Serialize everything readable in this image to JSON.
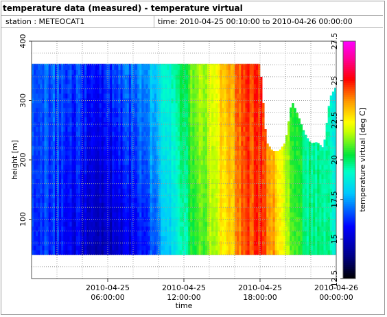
{
  "header": {
    "title": "temperature data (measured) - temperature virtual",
    "station": "station : METEOCAT1",
    "time_range": "time: 2010-04-25 00:10:00 to 2010-04-26 00:00:00"
  },
  "chart_data": {
    "type": "heatmap",
    "xlabel": "time",
    "ylabel": "height [m]",
    "x_range_hours": [
      0,
      24
    ],
    "x_ticks": [
      {
        "hour": 6,
        "line1": "2010-04-25",
        "line2": "06:00:00"
      },
      {
        "hour": 12,
        "line1": "2010-04-25",
        "line2": "12:00:00"
      },
      {
        "hour": 18,
        "line1": "2010-04-25",
        "line2": "18:00:00"
      },
      {
        "hour": 24,
        "line1": "2010-04-26",
        "line2": "00:00:00"
      }
    ],
    "ylim": [
      0,
      400
    ],
    "y_ticks": [
      100,
      200,
      300,
      400
    ],
    "grid": true,
    "data_height_range": [
      40,
      362
    ],
    "time_step_minutes": 10,
    "colorbar": {
      "label": "temperature virtual [deg C]",
      "min": 12.5,
      "max": 27.5,
      "ticks": [
        12.5,
        15,
        17.5,
        20,
        22.5,
        25,
        27.5
      ],
      "palette": "jet-extended (black-blue-cyan-green-yellow-red-magenta)"
    },
    "temperature_profile_by_hour": {
      "hours": [
        0,
        2,
        4,
        5,
        6,
        7,
        8,
        9,
        10,
        11,
        12,
        13,
        14,
        15,
        16,
        17,
        18,
        19,
        20,
        21,
        22,
        23,
        24
      ],
      "low_level_deg_c": [
        16.5,
        16.0,
        15.2,
        14.8,
        14.6,
        15.0,
        15.6,
        16.3,
        17.2,
        18.5,
        19.5,
        20.5,
        21.5,
        22.5,
        23.5,
        24.4,
        24.8,
        23.5,
        21.5,
        20.4,
        19.8,
        19.4,
        19.2
      ],
      "top_level_deg_c": [
        17.0,
        16.8,
        16.4,
        16.2,
        16.3,
        16.7,
        17.2,
        17.8,
        18.6,
        19.6,
        20.4,
        21.3,
        22.2,
        23.2,
        24.0,
        24.6,
        24.8,
        23.0,
        21.0,
        20.0,
        19.5,
        19.0,
        18.8
      ]
    },
    "data_top_height_after_18h": [
      {
        "hour": 18.0,
        "height": 362
      },
      {
        "hour": 18.5,
        "height": 230
      },
      {
        "hour": 19.0,
        "height": 215
      },
      {
        "hour": 19.5,
        "height": 215
      },
      {
        "hour": 20.0,
        "height": 230
      },
      {
        "hour": 20.5,
        "height": 300
      },
      {
        "hour": 21.0,
        "height": 275
      },
      {
        "hour": 21.5,
        "height": 245
      },
      {
        "hour": 22.0,
        "height": 228
      },
      {
        "hour": 22.5,
        "height": 230
      },
      {
        "hour": 23.0,
        "height": 220
      },
      {
        "hour": 23.5,
        "height": 305
      },
      {
        "hour": 24.0,
        "height": 325
      }
    ]
  }
}
